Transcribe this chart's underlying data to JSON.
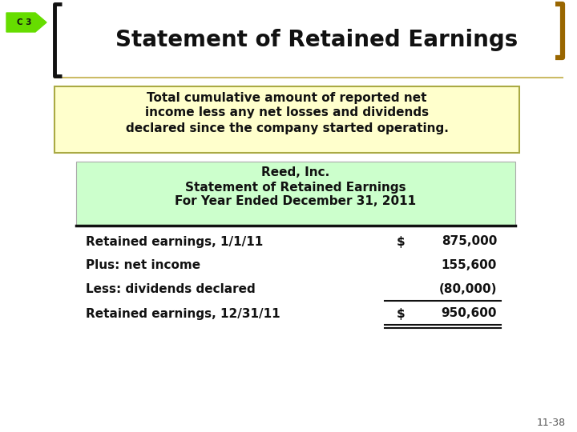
{
  "title": "Statement of Retained Earnings",
  "c3_label": "C 3",
  "description_line1": "Total cumulative amount of reported net",
  "description_line2": "income less any net losses and dividends",
  "description_line3": "declared since the company started operating.",
  "company_name": "Reed, Inc.",
  "statement_title": "Statement of Retained Earnings",
  "period": "For Year Ended December 31, 2011",
  "rows": [
    {
      "label": "Retained earnings, 1/1/11",
      "dollar": "$",
      "value": "875,000"
    },
    {
      "label": "Plus: net income",
      "dollar": "",
      "value": "155,600"
    },
    {
      "label": "Less: dividends declared",
      "dollar": "",
      "value": "(80,000)"
    },
    {
      "label": "Retained earnings, 12/31/11",
      "dollar": "$",
      "value": "950,600"
    }
  ],
  "slide_number": "11-38",
  "bg_color": "#ffffff",
  "title_color": "#111111",
  "header_bg": "#ccffcc",
  "desc_bg": "#ffffcc",
  "desc_border": "#aaaa44",
  "arrow_color": "#66dd00",
  "bracket_color_left": "#111111",
  "bracket_color_right": "#996600",
  "row_underline_idx": [
    2
  ],
  "row_double_underline_idx": [
    3
  ]
}
